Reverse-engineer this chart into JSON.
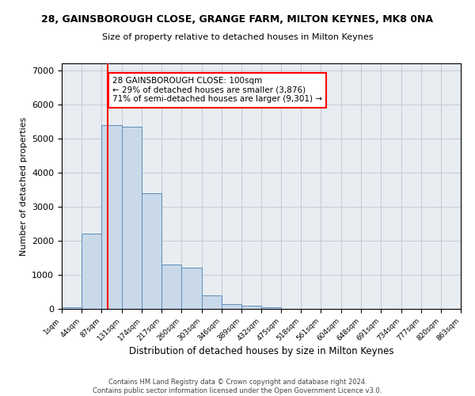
{
  "title": "28, GAINSBOROUGH CLOSE, GRANGE FARM, MILTON KEYNES, MK8 0NA",
  "subtitle": "Size of property relative to detached houses in Milton Keynes",
  "xlabel": "Distribution of detached houses by size in Milton Keynes",
  "ylabel": "Number of detached properties",
  "footer_line1": "Contains HM Land Registry data © Crown copyright and database right 2024.",
  "footer_line2": "Contains public sector information licensed under the Open Government Licence v3.0.",
  "bar_color": "#c9d9ea",
  "bar_edge_color": "#5b8db8",
  "grid_color": "#c8ccd4",
  "background_color": "#e8edf2",
  "annotation_text": "28 GAINSBOROUGH CLOSE: 100sqm\n← 29% of detached houses are smaller (3,876)\n71% of semi-detached houses are larger (9,301) →",
  "annotation_box_color": "white",
  "annotation_box_edge": "red",
  "vline_color": "red",
  "vline_x": 100,
  "bin_edges": [
    1,
    44,
    87,
    131,
    174,
    217,
    260,
    303,
    346,
    389,
    432,
    475,
    518,
    561,
    604,
    648,
    691,
    734,
    777,
    820,
    863
  ],
  "bar_heights": [
    50,
    2200,
    5400,
    5350,
    3400,
    1300,
    1200,
    400,
    150,
    100,
    50,
    5,
    5,
    5,
    5,
    5,
    5,
    5,
    5,
    5
  ],
  "ylim": [
    0,
    7200
  ],
  "yticks": [
    0,
    1000,
    2000,
    3000,
    4000,
    5000,
    6000,
    7000
  ]
}
